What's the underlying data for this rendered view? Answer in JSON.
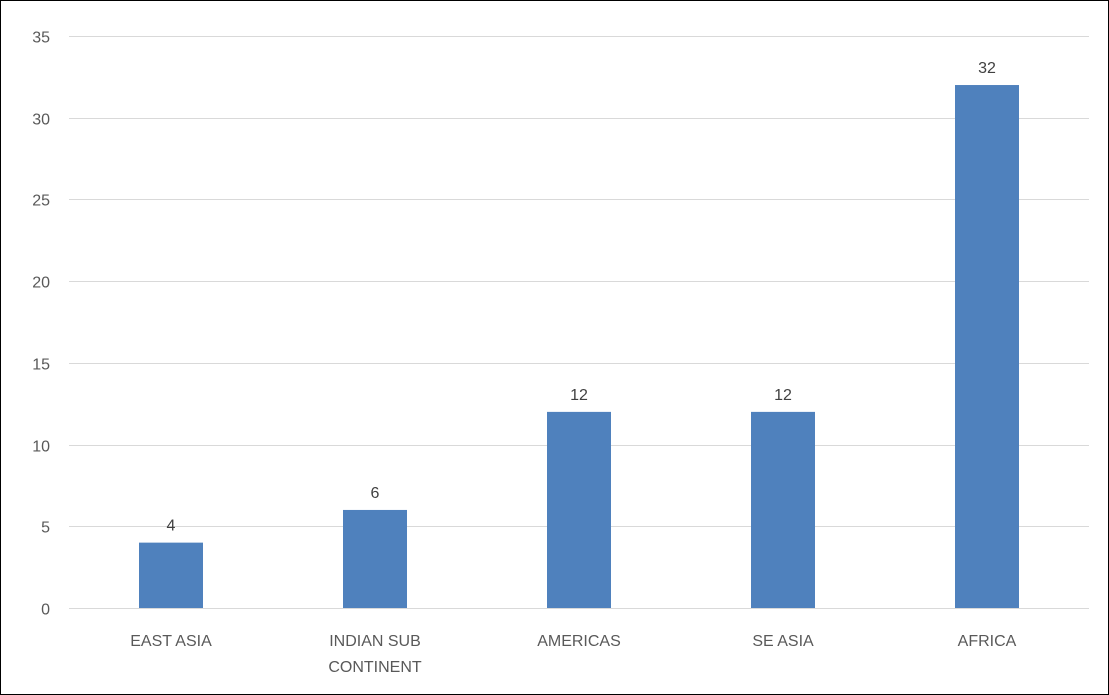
{
  "chart_data": {
    "type": "bar",
    "title": "",
    "xlabel": "",
    "ylabel": "",
    "categories": [
      "EAST ASIA",
      "INDIAN SUB CONTINENT",
      "AMERICAS",
      "SE ASIA",
      "AFRICA"
    ],
    "category_lines": [
      [
        "EAST ASIA"
      ],
      [
        "INDIAN SUB",
        "CONTINENT"
      ],
      [
        "AMERICAS"
      ],
      [
        "SE ASIA"
      ],
      [
        "AFRICA"
      ]
    ],
    "values": [
      4,
      6,
      12,
      12,
      32
    ],
    "data_labels": [
      "4",
      "6",
      "12",
      "12",
      "32"
    ],
    "ylim": [
      0,
      35
    ],
    "yticks": [
      0,
      5,
      10,
      15,
      20,
      25,
      30,
      35
    ],
    "grid": true,
    "legend": "none",
    "colors": {
      "bar": "#4f81bd",
      "grid": "#d9d9d9",
      "axis": "#d9d9d9"
    }
  }
}
